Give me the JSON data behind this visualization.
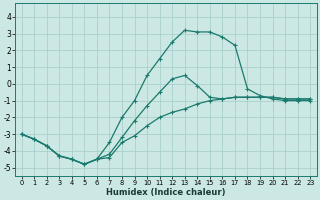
{
  "xlabel": "Humidex (Indice chaleur)",
  "xlim": [
    -0.5,
    23.5
  ],
  "ylim": [
    -5.5,
    4.8
  ],
  "xticks": [
    0,
    1,
    2,
    3,
    4,
    5,
    6,
    7,
    8,
    9,
    10,
    11,
    12,
    13,
    14,
    15,
    16,
    17,
    18,
    19,
    20,
    21,
    22,
    23
  ],
  "yticks": [
    -5,
    -4,
    -3,
    -2,
    -1,
    0,
    1,
    2,
    3,
    4
  ],
  "bg_color": "#cce8e4",
  "grid_color": "#aacfcb",
  "line_color": "#1a7a6e",
  "lines": [
    [
      -3.0,
      -3.3,
      -3.7,
      -4.3,
      -4.5,
      -4.8,
      -4.5,
      -4.4,
      -3.5,
      -3.1,
      -2.5,
      -2.0,
      -1.7,
      -1.5,
      -1.2,
      -1.0,
      -0.9,
      -0.8,
      -0.8,
      -0.8,
      -0.8,
      -0.9,
      -0.9,
      -0.9
    ],
    [
      -3.0,
      -3.3,
      -3.7,
      -4.3,
      -4.5,
      -4.8,
      -4.5,
      -4.2,
      -3.2,
      -2.2,
      -1.3,
      -0.5,
      0.3,
      0.5,
      -0.1,
      -0.8,
      -0.9,
      -0.8,
      -0.8,
      -0.8,
      -0.8,
      -0.9,
      -0.9,
      -0.9
    ],
    [
      -3.0,
      -3.3,
      -3.7,
      -4.3,
      -4.5,
      -4.8,
      -4.5,
      -3.5,
      -2.0,
      -1.0,
      0.5,
      1.5,
      2.5,
      3.2,
      3.1,
      3.1,
      2.8,
      2.3,
      -0.3,
      -0.7,
      -0.9,
      -1.0,
      -1.0,
      -1.0
    ]
  ]
}
